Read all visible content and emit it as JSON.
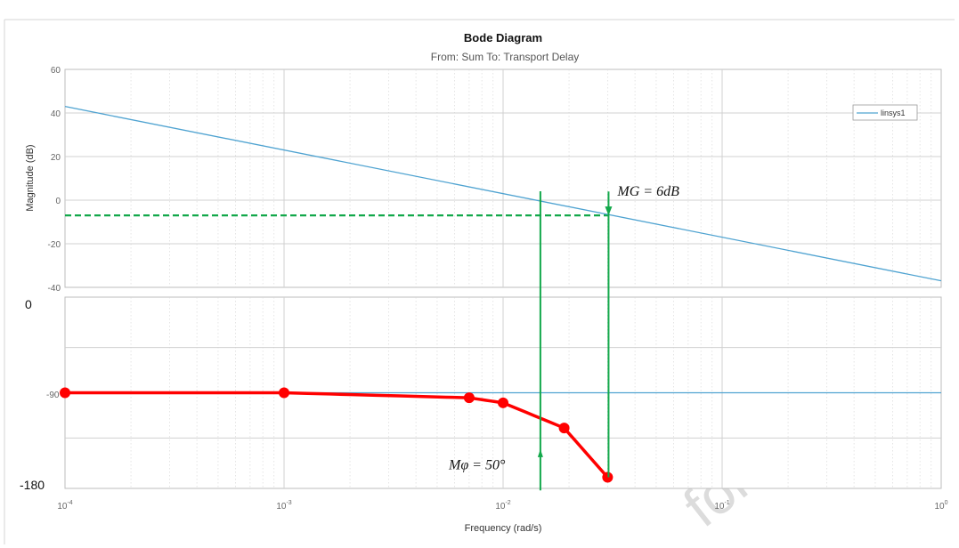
{
  "chart_data": {
    "type": "line",
    "title": "Bode Diagram",
    "subtitle": "From: Sum  To: Transport Delay",
    "xlabel": "Frequency  (rad/s)",
    "xscale": "log",
    "xlim": [
      0.0001,
      1
    ],
    "x_tick_labels": [
      {
        "base": "10",
        "exp": "-4"
      },
      {
        "base": "10",
        "exp": "-3"
      },
      {
        "base": "10",
        "exp": "-2"
      },
      {
        "base": "10",
        "exp": "-1"
      },
      {
        "base": "10",
        "exp": "0"
      }
    ],
    "magnitude": {
      "ylabel": "Magnitude (dB)",
      "ylim": [
        -40,
        60
      ],
      "yticks": [
        "60",
        "40",
        "20",
        "0",
        "-20",
        "-40"
      ],
      "legend": "linsys1",
      "legend_position": "top-right",
      "series": [
        {
          "name": "linsys1",
          "color": "#4fa3d1",
          "x": [
            0.0001,
            1
          ],
          "y": [
            43,
            -37
          ]
        }
      ],
      "gain_margin_level": -7,
      "annotation": "MG = 6dB"
    },
    "phase": {
      "ylim": [
        -185,
        5
      ],
      "yticks_large": [
        "0",
        "-180"
      ],
      "yticks_small": [
        "-90"
      ],
      "reference_line": {
        "y": -90,
        "color": "#4fa3d1"
      },
      "series": [
        {
          "color": "#ff0000",
          "x": [
            0.0001,
            0.001,
            0.007,
            0.01,
            0.019,
            0.03
          ],
          "y": [
            -90,
            -90,
            -95,
            -100,
            -125,
            -174
          ]
        }
      ],
      "annotation": "Mφ = 50°"
    },
    "markers": {
      "crossover_freq": 0.0148,
      "phase_crossover_freq": 0.0303,
      "color": "#12a84a"
    },
    "grid": true
  },
  "watermark": "for innovati"
}
